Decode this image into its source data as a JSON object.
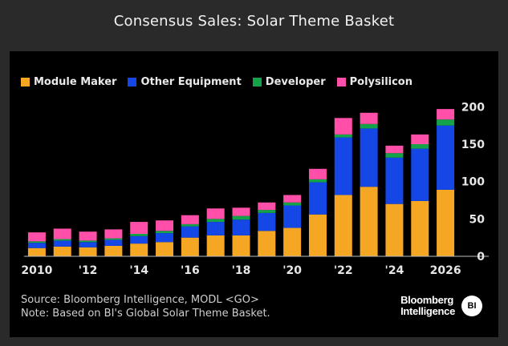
{
  "header": {
    "title": "Consensus Sales: Solar Theme Basket"
  },
  "chart_data": {
    "type": "bar",
    "stacked": true,
    "title": "Consensus Sales: Solar Theme Basket",
    "categories": [
      "2010",
      "2011",
      "2012",
      "2013",
      "2014",
      "2015",
      "2016",
      "2017",
      "2018",
      "2019",
      "2020",
      "2021",
      "2022",
      "2023",
      "2024",
      "2025",
      "2026"
    ],
    "x_tick_labels": [
      "2010",
      "",
      "'12",
      "",
      "'14",
      "",
      "'16",
      "",
      "'18",
      "",
      "'20",
      "",
      "'22",
      "",
      "'24",
      "",
      "2026"
    ],
    "series": [
      {
        "name": "Module Maker",
        "color": "#f5a623",
        "values": [
          11,
          13,
          12,
          14,
          17,
          19,
          25,
          28,
          28,
          34,
          38,
          56,
          82,
          93,
          70,
          74,
          89
        ]
      },
      {
        "name": "Other Equipment",
        "color": "#1447e6",
        "values": [
          7,
          8,
          7,
          8,
          10,
          12,
          15,
          18,
          21,
          24,
          30,
          43,
          77,
          78,
          62,
          70,
          86
        ]
      },
      {
        "name": "Developer",
        "color": "#15a34a",
        "values": [
          2,
          2,
          2,
          2,
          3,
          3,
          3,
          4,
          5,
          4,
          4,
          4,
          4,
          6,
          6,
          6,
          8
        ]
      },
      {
        "name": "Polysilicon",
        "color": "#ff4fa8",
        "values": [
          12,
          14,
          12,
          12,
          16,
          14,
          12,
          14,
          11,
          10,
          10,
          14,
          22,
          15,
          10,
          13,
          14
        ]
      }
    ],
    "yticks": [
      0,
      50,
      100,
      150,
      200
    ],
    "ylim": [
      0,
      210
    ],
    "ylabel": "",
    "xlabel": "",
    "legend_position": "top-left"
  },
  "footer": {
    "source": "Source: Bloomberg Intelligence, MODL <GO>",
    "note": "Note: Based on BI's Global Solar Theme Basket."
  },
  "logo": {
    "line1": "Bloomberg",
    "line2": "Intelligence",
    "badge": "BI"
  }
}
